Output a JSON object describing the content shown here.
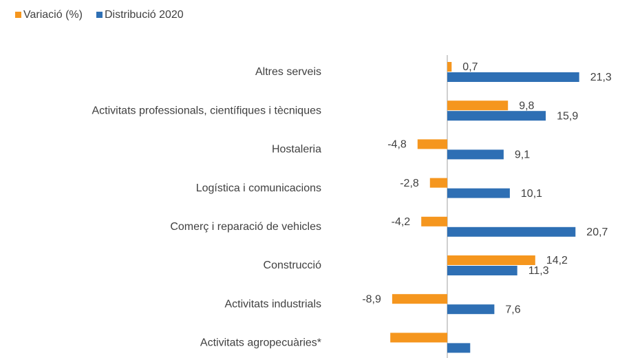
{
  "chart_data": {
    "type": "bar",
    "orientation": "horizontal",
    "categories": [
      "Altres serveis",
      "Activitats professionals, científiques i tècniques",
      "Hostaleria",
      "Logística i comunicacions",
      "Comerç i reparació de vehicles",
      "Construcció",
      "Activitats industrials",
      "Activitats agropecuàries*"
    ],
    "series": [
      {
        "name": "Variació (%)",
        "color": "#f5961e",
        "values": [
          0.7,
          9.8,
          -4.8,
          -2.8,
          -4.2,
          14.2,
          -8.9,
          -9.2
        ],
        "value_labels": [
          "0,7",
          "9,8",
          "-4,8",
          "-2,8",
          "-4,2",
          "14,2",
          "-8,9",
          null
        ]
      },
      {
        "name": "Distribució 2020",
        "color": "#2e6fb4",
        "values": [
          21.3,
          15.9,
          9.1,
          10.1,
          20.7,
          11.3,
          7.6,
          3.7
        ],
        "value_labels": [
          "21,3",
          "15,9",
          "9,1",
          "10,1",
          "20,7",
          "11,3",
          "7,6",
          null
        ]
      }
    ],
    "xlim": [
      -10,
      25
    ],
    "legend": "top-left"
  }
}
